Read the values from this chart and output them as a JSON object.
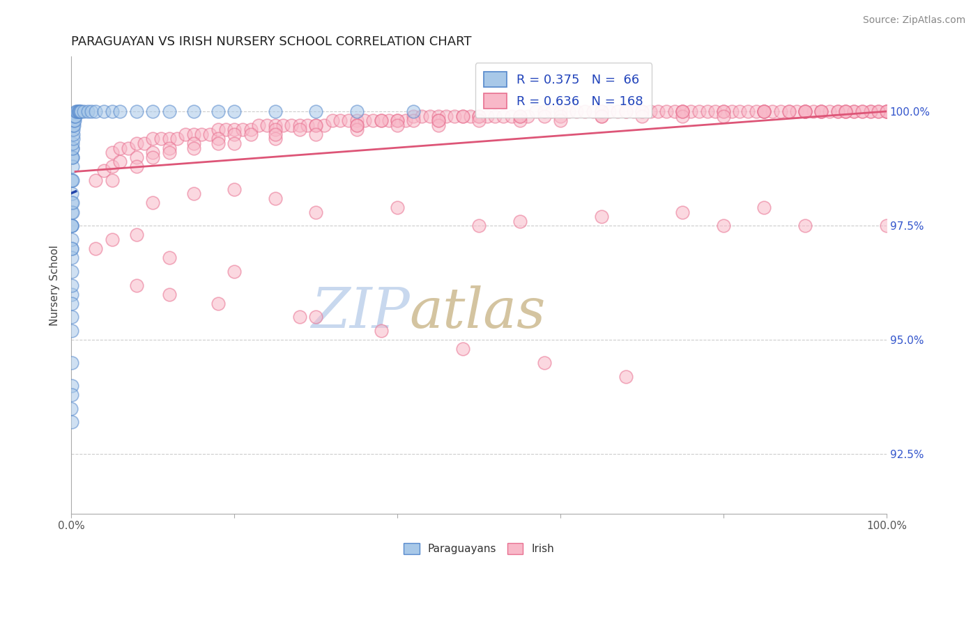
{
  "title": "PARAGUAYAN VS IRISH NURSERY SCHOOL CORRELATION CHART",
  "source_text": "Source: ZipAtlas.com",
  "ylabel": "Nursery School",
  "xlim": [
    0.0,
    100.0
  ],
  "ylim": [
    91.2,
    101.2
  ],
  "yticks": [
    92.5,
    95.0,
    97.5,
    100.0
  ],
  "ytick_labels": [
    "92.5%",
    "95.0%",
    "97.5%",
    "100.0%"
  ],
  "legend_R1": "0.375",
  "legend_N1": " 66",
  "legend_R2": "0.636",
  "legend_N2": "168",
  "color_paraguayan_face": "#a8c8e8",
  "color_paraguayan_edge": "#5588cc",
  "color_irish_face": "#f8b8c8",
  "color_irish_edge": "#e87090",
  "color_line_paraguayan": "#2244aa",
  "color_line_irish": "#dd5577",
  "watermark_zip": "#c0d0e8",
  "watermark_atlas": "#d0c0a0",
  "title_color": "#222222",
  "title_fontsize": 13,
  "legend_text_color": "#2244bb",
  "background_color": "#ffffff",
  "par_x": [
    0.02,
    0.03,
    0.03,
    0.04,
    0.04,
    0.05,
    0.05,
    0.05,
    0.06,
    0.06,
    0.06,
    0.07,
    0.07,
    0.07,
    0.08,
    0.08,
    0.08,
    0.09,
    0.09,
    0.1,
    0.1,
    0.1,
    0.11,
    0.11,
    0.12,
    0.12,
    0.13,
    0.13,
    0.14,
    0.15,
    0.16,
    0.17,
    0.18,
    0.2,
    0.22,
    0.25,
    0.28,
    0.3,
    0.35,
    0.4,
    0.45,
    0.5,
    0.6,
    0.7,
    0.8,
    0.9,
    1.0,
    1.1,
    1.2,
    1.5,
    2.0,
    2.5,
    3.0,
    4.0,
    5.0,
    6.0,
    8.0,
    10.0,
    12.0,
    15.0,
    18.0,
    20.0,
    25.0,
    30.0,
    35.0,
    42.0
  ],
  "par_y": [
    93.5,
    93.2,
    94.0,
    93.8,
    95.2,
    94.5,
    96.0,
    97.0,
    95.5,
    96.5,
    97.5,
    95.8,
    97.2,
    98.0,
    96.2,
    97.5,
    98.5,
    96.8,
    97.8,
    97.0,
    98.2,
    99.0,
    97.5,
    98.5,
    97.8,
    99.0,
    98.0,
    99.2,
    98.5,
    98.8,
    99.0,
    99.2,
    99.3,
    99.4,
    99.5,
    99.6,
    99.7,
    99.7,
    99.8,
    99.8,
    99.9,
    99.9,
    100.0,
    100.0,
    100.0,
    100.0,
    100.0,
    100.0,
    100.0,
    100.0,
    100.0,
    100.0,
    100.0,
    100.0,
    100.0,
    100.0,
    100.0,
    100.0,
    100.0,
    100.0,
    100.0,
    100.0,
    100.0,
    100.0,
    100.0,
    100.0
  ],
  "irish_dense_x": [
    5.0,
    6.0,
    7.0,
    8.0,
    9.0,
    10.0,
    11.0,
    12.0,
    13.0,
    14.0,
    15.0,
    16.0,
    17.0,
    18.0,
    19.0,
    20.0,
    21.0,
    22.0,
    23.0,
    24.0,
    25.0,
    26.0,
    27.0,
    28.0,
    29.0,
    30.0,
    31.0,
    32.0,
    33.0,
    34.0,
    35.0,
    36.0,
    37.0,
    38.0,
    39.0,
    40.0,
    41.0,
    42.0,
    43.0,
    44.0,
    45.0,
    46.0,
    47.0,
    48.0,
    49.0,
    50.0,
    51.0,
    52.0,
    53.0,
    54.0,
    55.0,
    56.0,
    57.0,
    58.0,
    59.0,
    60.0,
    61.0,
    62.0,
    63.0,
    64.0,
    65.0,
    66.0,
    67.0,
    68.0,
    69.0,
    70.0,
    71.0,
    72.0,
    73.0,
    74.0,
    75.0,
    76.0,
    77.0,
    78.0,
    79.0,
    80.0,
    81.0,
    82.0,
    83.0,
    84.0,
    85.0,
    86.0,
    87.0,
    88.0,
    89.0,
    90.0,
    91.0,
    92.0,
    93.0,
    94.0,
    95.0,
    96.0,
    97.0,
    98.0,
    99.0,
    100.0
  ],
  "irish_dense_y": [
    99.1,
    99.2,
    99.2,
    99.3,
    99.3,
    99.4,
    99.4,
    99.4,
    99.4,
    99.5,
    99.5,
    99.5,
    99.5,
    99.6,
    99.6,
    99.6,
    99.6,
    99.6,
    99.7,
    99.7,
    99.7,
    99.7,
    99.7,
    99.7,
    99.7,
    99.7,
    99.7,
    99.8,
    99.8,
    99.8,
    99.8,
    99.8,
    99.8,
    99.8,
    99.8,
    99.8,
    99.8,
    99.9,
    99.9,
    99.9,
    99.9,
    99.9,
    99.9,
    99.9,
    99.9,
    99.9,
    99.9,
    99.9,
    99.9,
    99.9,
    99.9,
    99.9,
    100.0,
    100.0,
    100.0,
    100.0,
    100.0,
    100.0,
    100.0,
    100.0,
    100.0,
    100.0,
    100.0,
    100.0,
    100.0,
    100.0,
    100.0,
    100.0,
    100.0,
    100.0,
    100.0,
    100.0,
    100.0,
    100.0,
    100.0,
    100.0,
    100.0,
    100.0,
    100.0,
    100.0,
    100.0,
    100.0,
    100.0,
    100.0,
    100.0,
    100.0,
    100.0,
    100.0,
    100.0,
    100.0,
    100.0,
    100.0,
    100.0,
    100.0,
    100.0,
    100.0
  ],
  "irish_sparse_x": [
    3.0,
    4.0,
    5.0,
    6.0,
    8.0,
    10.0,
    12.0,
    15.0,
    18.0,
    20.0,
    22.0,
    25.0,
    28.0,
    30.0,
    35.0,
    38.0,
    40.0,
    42.0,
    45.0,
    48.0,
    50.0,
    55.0,
    58.0,
    60.0,
    65.0,
    68.0,
    70.0,
    75.0,
    80.0,
    85.0,
    88.0,
    90.0,
    92.0,
    94.0,
    96.0,
    98.0,
    100.0,
    10.0,
    15.0,
    20.0,
    25.0,
    30.0,
    35.0,
    40.0,
    45.0,
    50.0,
    55.0,
    60.0,
    65.0,
    70.0,
    75.0,
    80.0,
    85.0,
    90.0,
    95.0,
    100.0,
    5.0,
    8.0,
    12.0,
    18.0,
    25.0,
    35.0,
    45.0,
    55.0,
    65.0,
    75.0,
    85.0,
    90.0,
    92.0,
    95.0,
    97.0,
    99.0,
    100.0
  ],
  "irish_sparse_y": [
    98.5,
    98.7,
    98.8,
    98.9,
    99.0,
    99.1,
    99.2,
    99.3,
    99.4,
    99.5,
    99.5,
    99.6,
    99.6,
    99.7,
    99.7,
    99.8,
    99.8,
    99.8,
    99.8,
    99.9,
    99.9,
    99.9,
    99.9,
    99.9,
    100.0,
    100.0,
    100.0,
    100.0,
    100.0,
    100.0,
    100.0,
    100.0,
    100.0,
    100.0,
    100.0,
    100.0,
    100.0,
    99.0,
    99.2,
    99.3,
    99.4,
    99.5,
    99.6,
    99.7,
    99.7,
    99.8,
    99.8,
    99.8,
    99.9,
    99.9,
    99.9,
    99.9,
    100.0,
    100.0,
    100.0,
    100.0,
    98.5,
    98.8,
    99.1,
    99.3,
    99.5,
    99.7,
    99.8,
    99.9,
    99.9,
    100.0,
    100.0,
    100.0,
    100.0,
    100.0,
    100.0,
    100.0,
    100.0
  ],
  "irish_outlier_x": [
    10.0,
    15.0,
    20.0,
    25.0,
    30.0,
    40.0,
    50.0,
    55.0,
    65.0,
    75.0,
    85.0,
    3.0,
    5.0,
    8.0,
    12.0,
    20.0,
    30.0,
    8.0,
    12.0,
    18.0,
    28.0,
    38.0,
    48.0,
    58.0,
    68.0,
    80.0,
    90.0,
    100.0
  ],
  "irish_outlier_y": [
    98.0,
    98.2,
    98.3,
    98.1,
    97.8,
    97.9,
    97.5,
    97.6,
    97.7,
    97.8,
    97.9,
    97.0,
    97.2,
    97.3,
    96.8,
    96.5,
    95.5,
    96.2,
    96.0,
    95.8,
    95.5,
    95.2,
    94.8,
    94.5,
    94.2,
    97.5,
    97.5,
    97.5
  ]
}
